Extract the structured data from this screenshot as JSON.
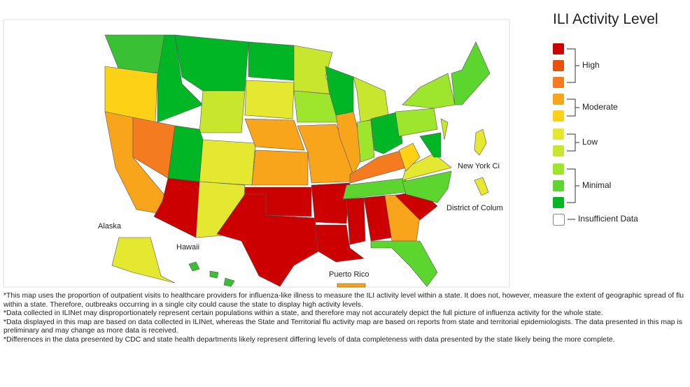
{
  "map": {
    "labels": {
      "alaska": "Alaska",
      "hawaii": "Hawaii",
      "puerto_rico": "Puerto Rico",
      "nyc": "New York Ci",
      "dc": "District of Colum"
    }
  },
  "legend": {
    "title": "ILI Activity Level",
    "groups": [
      "High",
      "Moderate",
      "Low",
      "Minimal"
    ],
    "insufficient": "Insufficient Data"
  },
  "notes": [
    "*This map uses the proportion of outpatient visits to healthcare providers for influenza-like illness to measure the ILI activity level within a state. It does not, however, measure the extent of geographic spread of flu within a state. Therefore, outbreaks occurring in a single city could cause the state to display high activity levels.",
    "*Data collected in ILINet may disproportionately represent certain populations within a state, and therefore may not accurately depict the full picture of influenza activity for the whole state.",
    "*Data displayed in this map are based on data collected in ILINet, whereas the State and Territorial flu activity map are based on reports from state and territorial epidemiologists. The data presented in this map is preliminary and may change as more data is received.",
    "*Differences in the data presented by CDC and state health departments likely represent differing levels of data completeness with data presented by the state likely being the more complete."
  ]
}
